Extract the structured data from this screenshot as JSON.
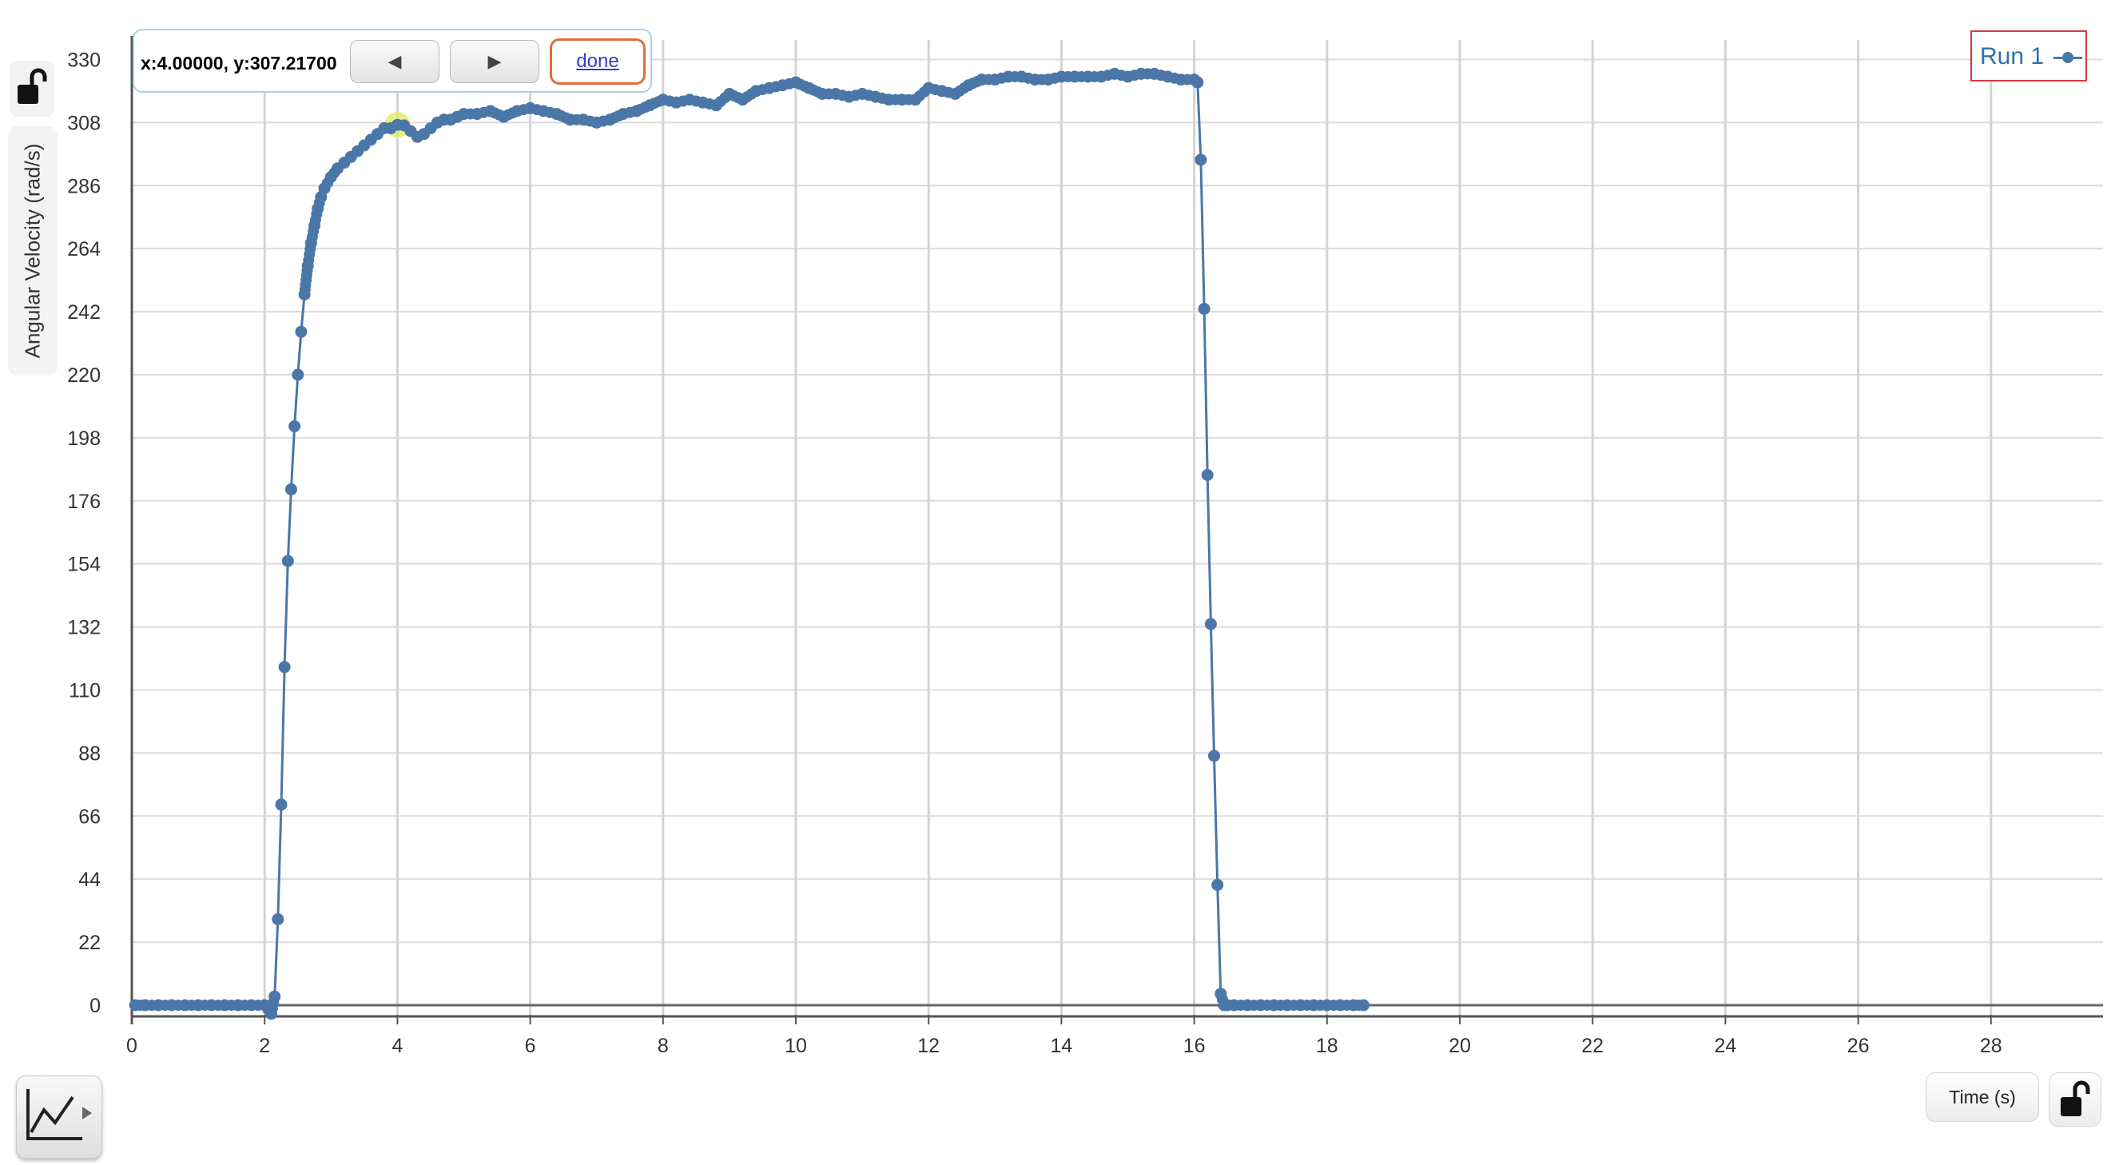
{
  "tooltip": {
    "readout": "x:4.00000, y:307.21700",
    "prev_label": "◀",
    "next_label": "▶",
    "done_label": "done"
  },
  "legend": {
    "label": "Run 1"
  },
  "icons": {
    "top_lock": "lock-open-icon",
    "bottom_lock": "lock-open-icon",
    "graph_tool": "line-graph-icon"
  },
  "colors": {
    "series": "#4a77a8",
    "highlight": "#e2e86a",
    "legend_border": "#d8393f",
    "done_border": "#e06d3c"
  },
  "chart_data": {
    "type": "line",
    "title": "",
    "xlabel": "Time (s)",
    "ylabel": "Angular Velocity (rad/s)",
    "xlim": [
      0,
      29.5
    ],
    "ylim": [
      -3,
      330
    ],
    "xticks": [
      0,
      2,
      4,
      6,
      8,
      10,
      12,
      14,
      16,
      18,
      20,
      22,
      24,
      26,
      28
    ],
    "yticks": [
      0,
      22,
      44,
      66,
      88,
      110,
      132,
      154,
      176,
      198,
      220,
      242,
      264,
      286,
      308,
      330
    ],
    "grid": true,
    "legend_position": "top-right",
    "highlight_point": {
      "x": 4.0,
      "y": 307.217
    },
    "series": [
      {
        "name": "Run 1",
        "x": [
          0.05,
          0.2,
          0.4,
          0.6,
          0.8,
          1.0,
          1.2,
          1.4,
          1.6,
          1.8,
          2.0,
          2.1,
          2.15,
          2.2,
          2.25,
          2.3,
          2.35,
          2.4,
          2.45,
          2.5,
          2.55,
          2.6,
          2.65,
          2.7,
          2.75,
          2.8,
          2.85,
          2.9,
          3.0,
          3.1,
          3.2,
          3.3,
          3.4,
          3.5,
          3.6,
          3.7,
          3.8,
          3.9,
          4.0,
          4.1,
          4.2,
          4.3,
          4.4,
          4.5,
          4.6,
          4.7,
          4.8,
          4.9,
          5.0,
          5.2,
          5.4,
          5.6,
          5.8,
          6.0,
          6.2,
          6.4,
          6.6,
          6.8,
          7.0,
          7.2,
          7.4,
          7.6,
          7.8,
          8.0,
          8.2,
          8.4,
          8.6,
          8.8,
          9.0,
          9.2,
          9.4,
          9.6,
          9.8,
          10.0,
          10.2,
          10.4,
          10.6,
          10.8,
          11.0,
          11.2,
          11.4,
          11.6,
          11.8,
          12.0,
          12.2,
          12.4,
          12.6,
          12.8,
          13.0,
          13.2,
          13.4,
          13.6,
          13.8,
          14.0,
          14.2,
          14.4,
          14.6,
          14.8,
          15.0,
          15.2,
          15.4,
          15.6,
          15.8,
          16.0,
          16.05,
          16.1,
          16.15,
          16.2,
          16.25,
          16.3,
          16.35,
          16.4,
          16.45,
          16.5,
          16.6,
          16.8,
          17.0,
          17.2,
          17.4,
          17.6,
          17.8,
          18.0,
          18.2,
          18.4,
          18.55
        ],
        "y": [
          0,
          0,
          0,
          0,
          0,
          0,
          0,
          0,
          0,
          0,
          0,
          -3,
          3,
          30,
          70,
          118,
          155,
          180,
          202,
          220,
          235,
          248,
          258,
          266,
          272,
          278,
          282,
          285,
          289,
          292,
          294,
          296,
          298,
          300,
          302,
          304,
          306,
          306,
          307.2,
          307,
          305,
          303,
          304,
          306,
          308,
          309,
          309,
          310,
          311,
          311,
          312,
          310,
          312,
          313,
          312,
          311,
          309,
          309,
          308,
          309,
          311,
          312,
          314,
          316,
          315,
          316,
          315,
          314,
          318,
          316,
          319,
          320,
          321,
          322,
          320,
          318,
          318,
          317,
          318,
          317,
          316,
          316,
          316,
          320,
          319,
          318,
          321,
          323,
          323,
          324,
          324,
          323,
          323,
          324,
          324,
          324,
          324,
          325,
          324,
          325,
          325,
          324,
          323,
          323,
          322,
          295,
          243,
          185,
          133,
          87,
          42,
          4,
          0,
          0,
          0,
          0,
          0,
          0,
          0,
          0,
          0,
          0,
          0,
          0,
          0
        ]
      }
    ]
  }
}
